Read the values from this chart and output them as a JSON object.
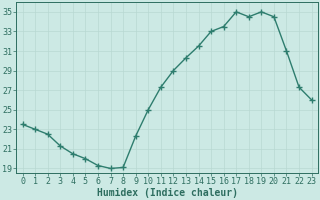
{
  "x": [
    0,
    1,
    2,
    3,
    4,
    5,
    6,
    7,
    8,
    9,
    10,
    11,
    12,
    13,
    14,
    15,
    16,
    17,
    18,
    19,
    20,
    21,
    22,
    23
  ],
  "y": [
    23.5,
    23.0,
    22.5,
    21.3,
    20.5,
    20.0,
    19.3,
    19.0,
    19.1,
    22.3,
    25.0,
    27.3,
    29.0,
    30.3,
    31.5,
    33.0,
    33.5,
    35.0,
    34.5,
    35.0,
    34.5,
    31.0,
    27.3,
    26.0
  ],
  "line_color": "#2e7d6e",
  "marker": "+",
  "marker_size": 4,
  "marker_lw": 1.0,
  "line_width": 1.0,
  "bg_color": "#cce9e4",
  "grid_color": "#b8d8d2",
  "xlabel": "Humidex (Indice chaleur)",
  "ylim": [
    18.5,
    36.0
  ],
  "xlim": [
    -0.5,
    23.5
  ],
  "yticks": [
    19,
    21,
    23,
    25,
    27,
    29,
    31,
    33,
    35
  ],
  "xticks": [
    0,
    1,
    2,
    3,
    4,
    5,
    6,
    7,
    8,
    9,
    10,
    11,
    12,
    13,
    14,
    15,
    16,
    17,
    18,
    19,
    20,
    21,
    22,
    23
  ],
  "tick_color": "#2e6e60",
  "label_color": "#2e6e60",
  "font_size_tick": 6.0,
  "font_size_label": 7.0
}
